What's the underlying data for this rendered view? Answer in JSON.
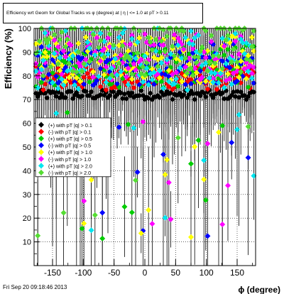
{
  "chart_data": {
    "type": "scatter",
    "title": "Efficiency wrt Geom for Global Tracks vs φ (degree) at | η | <= 1.0 at pT > 0.11",
    "xlabel": "ϕ (degree)",
    "ylabel": "Efficiency (%)",
    "xlim": [
      -180,
      180
    ],
    "ylim": [
      0,
      100
    ],
    "xticks": [
      -150,
      -100,
      -50,
      0,
      50,
      100,
      150
    ],
    "yticks": [
      10,
      20,
      30,
      40,
      50,
      60,
      70,
      80,
      90,
      100
    ],
    "grid": true,
    "legend_position": "left-middle",
    "series": [
      {
        "name": "(+) with pT |q| > 0.1",
        "color": "#000000",
        "marker": "diamond",
        "errors": false,
        "base": 72,
        "spread": 2
      },
      {
        "name": "(-) with pT |q| > 0.1",
        "color": "#ff0000",
        "marker": "diamond",
        "errors": false,
        "base": 79,
        "spread": 5
      },
      {
        "name": "(+) with pT |q| > 0.5",
        "color": "#00cc00",
        "marker": "diamond",
        "errors": true,
        "base": 84,
        "spread": 9
      },
      {
        "name": "(-) with pT |q| > 0.5",
        "color": "#0000ff",
        "marker": "diamond",
        "errors": true,
        "base": 85,
        "spread": 9
      },
      {
        "name": "(+) with pT |q| > 1.0",
        "color": "#ffff00",
        "marker": "diamond",
        "errors": true,
        "base": 87,
        "spread": 10
      },
      {
        "name": "(-) with pT |q| > 1.0",
        "color": "#ff00ff",
        "marker": "diamond",
        "errors": true,
        "base": 88,
        "spread": 10
      },
      {
        "name": "(+) with pT |q| > 2.0",
        "color": "#00e5ee",
        "marker": "diamond",
        "errors": true,
        "base": 88,
        "spread": 14
      },
      {
        "name": "(-) with pT |q| > 2.0",
        "color": "#55dd33",
        "marker": "diamond",
        "errors": true,
        "base": 92,
        "spread": 12
      }
    ]
  },
  "footer": {
    "timestamp": "Fri Sep 20 09:18:46 2013"
  }
}
